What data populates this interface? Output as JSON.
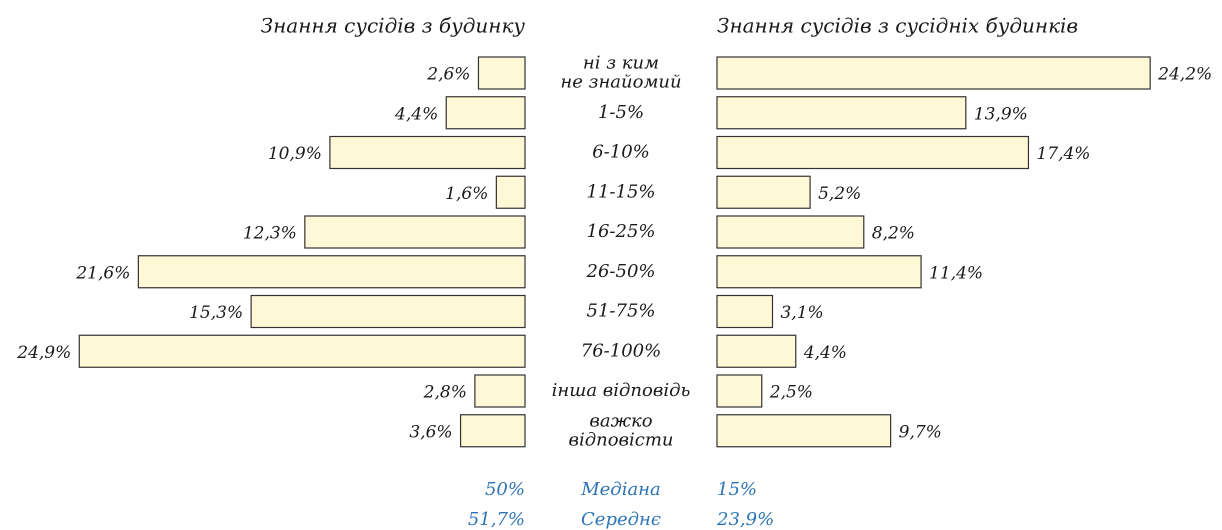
{
  "chart_data": {
    "type": "butterfly",
    "categories": [
      "ні з ким\nне знайомий",
      "1-5%",
      "6-10%",
      "11-15%",
      "16-25%",
      "26-50%",
      "51-75%",
      "76-100%",
      "інша відповідь",
      "важко\nвідповісти"
    ],
    "series": [
      {
        "name": "Знання сусідів з будинку",
        "color": "#fff8d6",
        "values": [
          2.6,
          4.4,
          10.9,
          1.6,
          12.3,
          21.6,
          15.3,
          24.9,
          2.8,
          3.6
        ],
        "value_labels": [
          "2,6%",
          "4,4%",
          "10,9%",
          "1,6%",
          "12,3%",
          "21,6%",
          "15,3%",
          "24,9%",
          "2,8%",
          "3,6%"
        ]
      },
      {
        "name": "Знання сусідів з сусідніх будинків",
        "color": "#fff8d6",
        "values": [
          24.2,
          13.9,
          17.4,
          5.2,
          8.2,
          11.4,
          3.1,
          4.4,
          2.5,
          9.7
        ],
        "value_labels": [
          "24,2%",
          "13,9%",
          "17,4%",
          "5,2%",
          "8,2%",
          "11,4%",
          "3,1%",
          "4,4%",
          "2,5%",
          "9,7%"
        ]
      }
    ],
    "stats": [
      {
        "name": "Медіана",
        "values": [
          50,
          15
        ],
        "value_labels": [
          "50%",
          "15%"
        ]
      },
      {
        "name": "Середнє",
        "values": [
          51.7,
          23.9
        ],
        "value_labels": [
          "51,7%",
          "23,9%"
        ]
      }
    ]
  }
}
